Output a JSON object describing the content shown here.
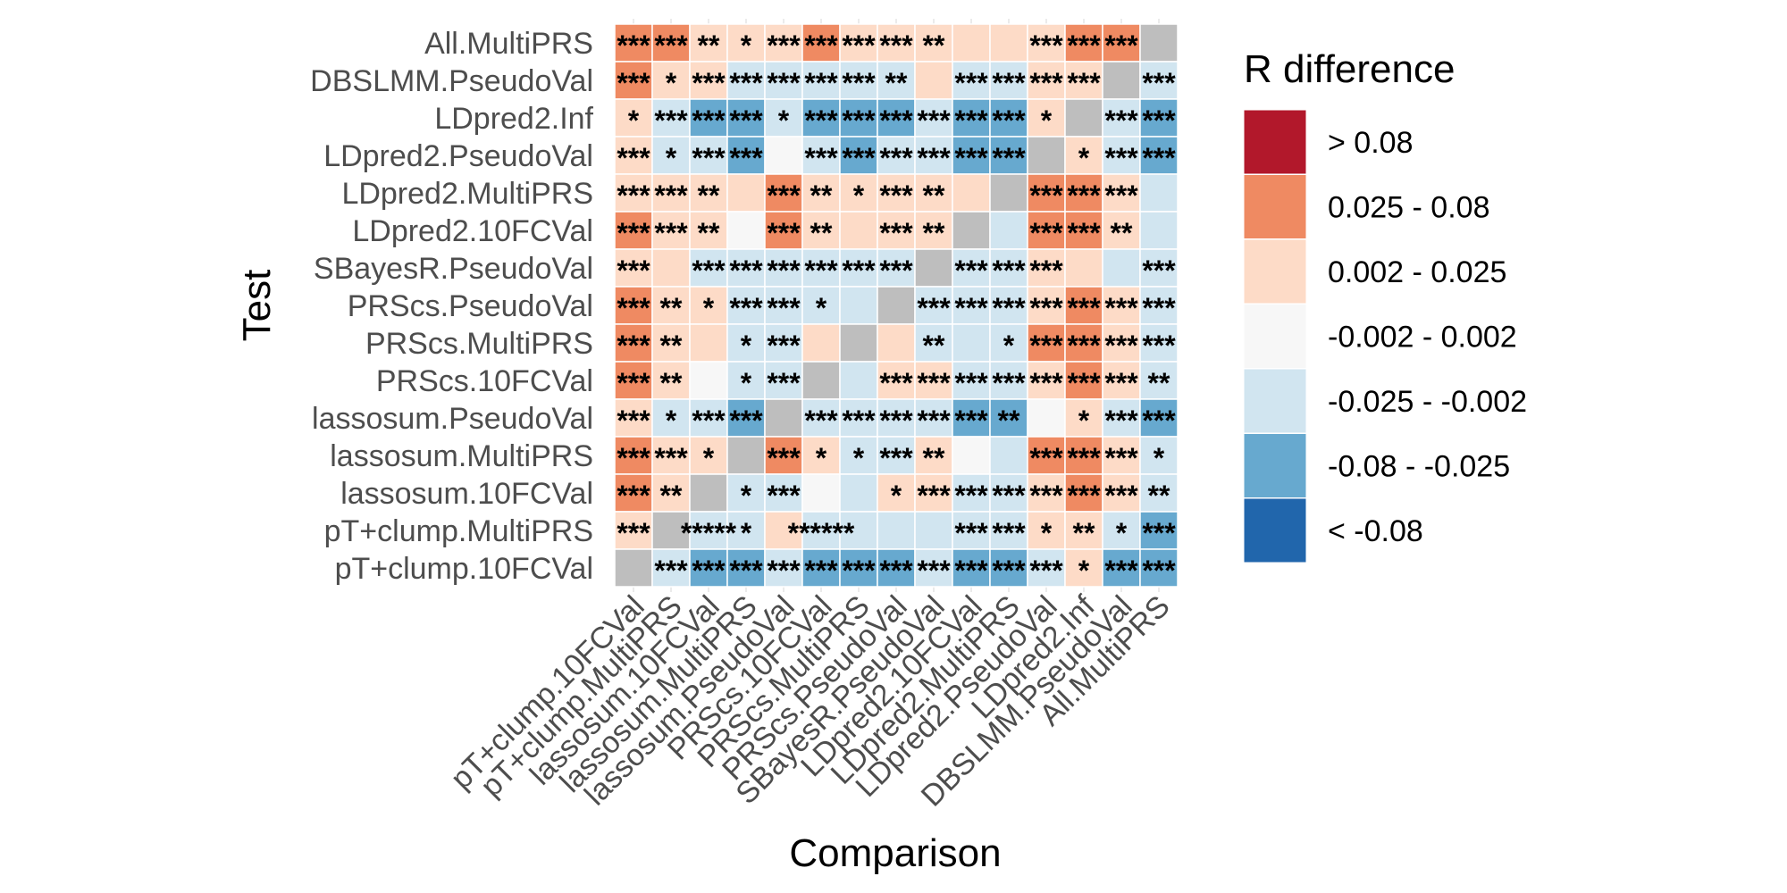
{
  "chart_data": {
    "type": "heatmap",
    "xlabel": "Comparison",
    "ylabel": "Test",
    "rows": [
      "All.MultiPRS",
      "DBSLMM.PseudoVal",
      "LDpred2.Inf",
      "LDpred2.PseudoVal",
      "LDpred2.MultiPRS",
      "LDpred2.10FCVal",
      "SBayesR.PseudoVal",
      "PRScs.PseudoVal",
      "PRScs.MultiPRS",
      "PRScs.10FCVal",
      "lassosum.PseudoVal",
      "lassosum.MultiPRS",
      "lassosum.10FCVal",
      "pT+clump.MultiPRS",
      "pT+clump.10FCVal"
    ],
    "columns": [
      "pT+clump.10FCVal",
      "pT+clump.MultiPRS",
      "lassosum.10FCVal",
      "lassosum.MultiPRS",
      "lassosum.PseudoVal",
      "PRScs.10FCVal",
      "PRScs.MultiPRS",
      "PRScs.PseudoVal",
      "SBayesR.PseudoVal",
      "LDpred2.10FCVal",
      "LDpred2.MultiPRS",
      "LDpred2.PseudoVal",
      "LDpred2.Inf",
      "DBSLMM.PseudoVal",
      "All.MultiPRS"
    ],
    "legend": {
      "title": "R difference",
      "bins": [
        {
          "label": "> 0.08",
          "color": "#b2182b"
        },
        {
          "label": "0.025 - 0.08",
          "color": "#ef8a62"
        },
        {
          "label": "0.002 - 0.025",
          "color": "#fddbc7"
        },
        {
          "label": "-0.002 - 0.002",
          "color": "#f7f7f7"
        },
        {
          "label": "-0.025 - -0.002",
          "color": "#d1e5f0"
        },
        {
          "label": "-0.08 - -0.025",
          "color": "#67a9cf"
        },
        {
          "label": "< -0.08",
          "color": "#2166ac"
        }
      ]
    },
    "diagonal_color": "#bebebe",
    "cell_bins": [
      [
        1,
        1,
        2,
        2,
        2,
        1,
        2,
        2,
        2,
        2,
        2,
        2,
        1,
        1,
        -1
      ],
      [
        1,
        2,
        2,
        4,
        4,
        4,
        4,
        4,
        2,
        4,
        4,
        2,
        2,
        -1,
        4
      ],
      [
        2,
        4,
        5,
        5,
        4,
        5,
        5,
        5,
        4,
        5,
        5,
        2,
        -1,
        4,
        5
      ],
      [
        2,
        4,
        4,
        5,
        3,
        4,
        5,
        4,
        4,
        5,
        5,
        -1,
        2,
        4,
        5
      ],
      [
        2,
        2,
        2,
        2,
        1,
        2,
        2,
        2,
        2,
        2,
        -1,
        1,
        1,
        2,
        4
      ],
      [
        1,
        2,
        2,
        3,
        1,
        2,
        2,
        2,
        2,
        -1,
        4,
        1,
        1,
        2,
        4
      ],
      [
        2,
        2,
        4,
        4,
        4,
        4,
        4,
        4,
        -1,
        4,
        4,
        2,
        2,
        4,
        4
      ],
      [
        1,
        2,
        2,
        4,
        4,
        4,
        4,
        -1,
        4,
        4,
        4,
        2,
        1,
        2,
        4
      ],
      [
        1,
        2,
        2,
        4,
        4,
        2,
        -1,
        2,
        4,
        4,
        4,
        1,
        1,
        2,
        4
      ],
      [
        1,
        2,
        3,
        4,
        4,
        -1,
        4,
        2,
        2,
        4,
        4,
        2,
        1,
        2,
        4
      ],
      [
        2,
        4,
        4,
        5,
        -1,
        4,
        4,
        4,
        4,
        5,
        5,
        3,
        2,
        4,
        5
      ],
      [
        1,
        2,
        2,
        -1,
        1,
        2,
        4,
        4,
        2,
        3,
        4,
        1,
        1,
        2,
        4
      ],
      [
        1,
        2,
        -1,
        4,
        4,
        3,
        4,
        2,
        2,
        4,
        4,
        2,
        1,
        2,
        4
      ],
      [
        2,
        -1,
        4,
        4,
        2,
        4,
        4,
        4,
        4,
        4,
        4,
        2,
        2,
        4,
        5
      ],
      [
        -1,
        4,
        5,
        5,
        4,
        5,
        5,
        5,
        4,
        5,
        5,
        4,
        2,
        5,
        5
      ]
    ],
    "cell_labels": [
      [
        "***",
        "***",
        "**",
        "*",
        "***",
        "***",
        "***",
        "***",
        "**",
        "",
        "",
        "***",
        "***",
        "***",
        ""
      ],
      [
        "***",
        "*",
        "***",
        "***",
        "***",
        "***",
        "***",
        "**",
        "",
        "***",
        "***",
        "***",
        "***",
        "",
        "***"
      ],
      [
        "*",
        "***",
        "***",
        "***",
        "*",
        "***",
        "***",
        "***",
        "***",
        "***",
        "***",
        "*",
        "",
        "***",
        "***"
      ],
      [
        "***",
        "*",
        "***",
        "***",
        "",
        "***",
        "***",
        "***",
        "***",
        "***",
        "***",
        "",
        "*",
        "***",
        "***"
      ],
      [
        "***",
        "***",
        "**",
        "",
        "***",
        "**",
        "*",
        "***",
        "**",
        "",
        "",
        "***",
        "***",
        "***",
        ""
      ],
      [
        "***",
        "***",
        "**",
        "",
        "***",
        "**",
        "",
        "***",
        "**",
        "",
        "",
        "***",
        "***",
        "**",
        ""
      ],
      [
        "***",
        "",
        "***",
        "***",
        "***",
        "***",
        "***",
        "***",
        "",
        "***",
        "***",
        "***",
        "",
        "",
        "***"
      ],
      [
        "***",
        "**",
        "*",
        "***",
        "***",
        "*",
        "",
        "",
        "***",
        "***",
        "***",
        "***",
        "***",
        "***",
        "***"
      ],
      [
        "***",
        "**",
        "",
        "*",
        "***",
        "",
        "",
        "",
        "**",
        "",
        "*",
        "***",
        "***",
        "***",
        "***"
      ],
      [
        "***",
        "**",
        "",
        "*",
        "***",
        "",
        "",
        "***",
        "***",
        "***",
        "***",
        "***",
        "***",
        "***",
        "**"
      ],
      [
        "***",
        "*",
        "***",
        "***",
        "",
        "***",
        "***",
        "***",
        "***",
        "***",
        "**",
        "",
        "*",
        "***",
        "***"
      ],
      [
        "***",
        "***",
        "*",
        "",
        "***",
        "*",
        "*",
        "***",
        "**",
        "",
        "",
        "***",
        "***",
        "***",
        "*"
      ],
      [
        "***",
        "**",
        "",
        "*",
        "***",
        "",
        "",
        "*",
        "***",
        "***",
        "***",
        "***",
        "***",
        "***",
        "**"
      ],
      [
        "***",
        "",
        "*****",
        "*",
        "",
        "******",
        "",
        "",
        "",
        "***",
        "***",
        "*",
        "**",
        "*",
        "***"
      ],
      [
        "",
        "***",
        "***",
        "***",
        "***",
        "***",
        "***",
        "***",
        "***",
        "***",
        "***",
        "***",
        "*",
        "***",
        "***"
      ]
    ]
  }
}
